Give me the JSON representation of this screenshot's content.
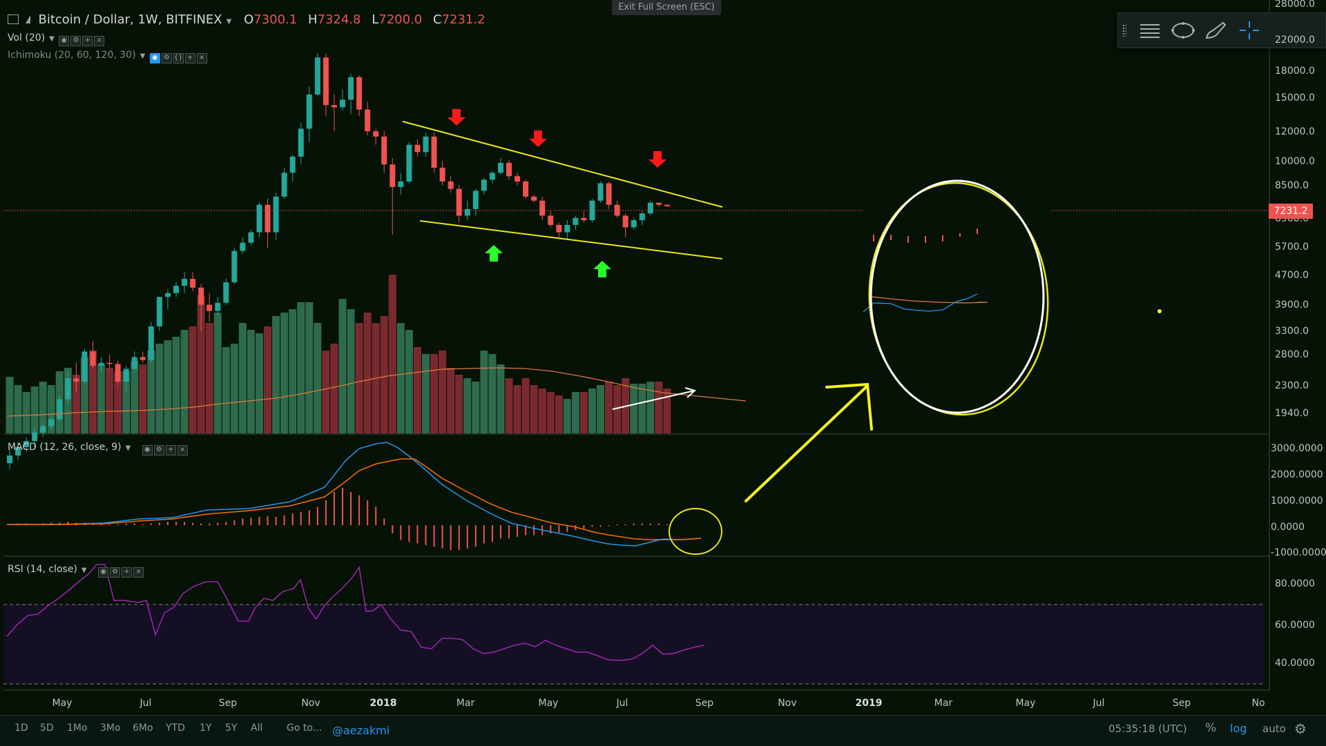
{
  "header": {
    "symbol": "Bitcoin / Dollar, 1W, BITFINEX",
    "ohlc": [
      {
        "label": "O",
        "value": "7300.1"
      },
      {
        "label": "H",
        "value": "7324.8"
      },
      {
        "label": "L",
        "value": "7200.0"
      },
      {
        "label": "C",
        "value": "7231.2"
      }
    ],
    "fullscreen_button": "Exit Full Screen (ESC)"
  },
  "indicators": {
    "vol_label": "Vol (20)",
    "ichimoku_label": "Ichimoku (20, 60, 120, 30)",
    "macd_label": "MACD (12, 26, close, 9)",
    "rsi_label": "RSI (14, close)"
  },
  "price_axis": {
    "labels": [
      "28000.0",
      "22000.0",
      "18000.0",
      "15000.0",
      "12000.0",
      "10000.0",
      "8500.0",
      "6900.0",
      "5700.0",
      "4700.0",
      "3900.0",
      "3300.0",
      "2800.0",
      "2300.0",
      "1940.0"
    ],
    "last_price": "7231.2"
  },
  "macd_axis": {
    "labels": [
      "3000.0000",
      "2000.0000",
      "1000.0000",
      "0.0000",
      "-1000.0000"
    ]
  },
  "rsi_axis": {
    "labels": [
      "80.0000",
      "60.0000",
      "40.0000"
    ]
  },
  "time_axis": {
    "labels": [
      {
        "text": "May",
        "year": false
      },
      {
        "text": "Jul",
        "year": false
      },
      {
        "text": "Sep",
        "year": false
      },
      {
        "text": "Nov",
        "year": false
      },
      {
        "text": "2018",
        "year": true
      },
      {
        "text": "Mar",
        "year": false
      },
      {
        "text": "May",
        "year": false
      },
      {
        "text": "Jul",
        "year": false
      },
      {
        "text": "Sep",
        "year": false
      },
      {
        "text": "Nov",
        "year": false
      },
      {
        "text": "2019",
        "year": true
      },
      {
        "text": "Mar",
        "year": false
      },
      {
        "text": "May",
        "year": false
      },
      {
        "text": "Jul",
        "year": false
      },
      {
        "text": "Sep",
        "year": false
      },
      {
        "text": "No",
        "year": false
      }
    ]
  },
  "bottom_bar": {
    "ranges": [
      "1D",
      "5D",
      "1Mo",
      "3Mo",
      "6Mo",
      "YTD",
      "1Y",
      "5Y",
      "All"
    ],
    "goto": "Go to...",
    "handle": "@aezakmi",
    "clock": "05:35:18 (UTC)",
    "percent": "%",
    "log": "log",
    "auto": "auto"
  },
  "colors": {
    "background": "#071206",
    "up": "#26a69a",
    "down": "#ef5350",
    "annotation_yellow": "#f5f51b",
    "arrow_red": "#ff1a1a",
    "arrow_green": "#2aff2a",
    "rsi": "#9c27b0",
    "macd": "#2196f3",
    "signal": "#ff6d00"
  },
  "chart_data": {
    "type": "candlestick",
    "title": "Bitcoin / Dollar, 1W, BITFINEX",
    "y_scale": "log",
    "ylim": [
      1600,
      30000
    ],
    "candles": [
      {
        "o": 1350,
        "h": 1480,
        "l": 1300,
        "c": 1420
      },
      {
        "o": 1420,
        "h": 1550,
        "l": 1380,
        "c": 1500
      },
      {
        "o": 1500,
        "h": 1600,
        "l": 1450,
        "c": 1560
      },
      {
        "o": 1560,
        "h": 1700,
        "l": 1500,
        "c": 1650
      },
      {
        "o": 1650,
        "h": 1760,
        "l": 1600,
        "c": 1720
      },
      {
        "o": 1720,
        "h": 1850,
        "l": 1680,
        "c": 1800
      },
      {
        "o": 1800,
        "h": 2100,
        "l": 1760,
        "c": 2050
      },
      {
        "o": 2050,
        "h": 2450,
        "l": 2000,
        "c": 2350
      },
      {
        "o": 2350,
        "h": 2600,
        "l": 2150,
        "c": 2300
      },
      {
        "o": 2300,
        "h": 2850,
        "l": 2250,
        "c": 2800
      },
      {
        "o": 2800,
        "h": 3000,
        "l": 2500,
        "c": 2550
      },
      {
        "o": 2550,
        "h": 2700,
        "l": 2450,
        "c": 2600
      },
      {
        "o": 2600,
        "h": 2750,
        "l": 2500,
        "c": 2580
      },
      {
        "o": 2580,
        "h": 2640,
        "l": 2250,
        "c": 2300
      },
      {
        "o": 2300,
        "h": 2550,
        "l": 2150,
        "c": 2500
      },
      {
        "o": 2500,
        "h": 2800,
        "l": 2450,
        "c": 2700
      },
      {
        "o": 2700,
        "h": 2800,
        "l": 2600,
        "c": 2650
      },
      {
        "o": 2650,
        "h": 3400,
        "l": 2600,
        "c": 3300
      },
      {
        "o": 3300,
        "h": 4000,
        "l": 3200,
        "c": 4000
      },
      {
        "o": 4000,
        "h": 4200,
        "l": 3700,
        "c": 4100
      },
      {
        "o": 4100,
        "h": 4400,
        "l": 4000,
        "c": 4300
      },
      {
        "o": 4300,
        "h": 4700,
        "l": 4100,
        "c": 4500
      },
      {
        "o": 4500,
        "h": 4700,
        "l": 4150,
        "c": 4250
      },
      {
        "o": 4250,
        "h": 4350,
        "l": 3200,
        "c": 3800
      },
      {
        "o": 3800,
        "h": 4100,
        "l": 3400,
        "c": 3650
      },
      {
        "o": 3650,
        "h": 4000,
        "l": 3550,
        "c": 3850
      },
      {
        "o": 3850,
        "h": 4500,
        "l": 3800,
        "c": 4400
      },
      {
        "o": 4400,
        "h": 5500,
        "l": 4350,
        "c": 5400
      },
      {
        "o": 5400,
        "h": 5900,
        "l": 5300,
        "c": 5700
      },
      {
        "o": 5700,
        "h": 6200,
        "l": 5600,
        "c": 6100
      },
      {
        "o": 6100,
        "h": 7400,
        "l": 5900,
        "c": 7300
      },
      {
        "o": 7300,
        "h": 7600,
        "l": 5500,
        "c": 6100
      },
      {
        "o": 6100,
        "h": 7900,
        "l": 5800,
        "c": 7700
      },
      {
        "o": 7700,
        "h": 9300,
        "l": 7600,
        "c": 9000
      },
      {
        "o": 9000,
        "h": 10100,
        "l": 8500,
        "c": 10000
      },
      {
        "o": 10000,
        "h": 12500,
        "l": 9500,
        "c": 12000
      },
      {
        "o": 12000,
        "h": 15800,
        "l": 11000,
        "c": 15000
      },
      {
        "o": 15000,
        "h": 19600,
        "l": 14800,
        "c": 19100
      },
      {
        "o": 19100,
        "h": 19600,
        "l": 13000,
        "c": 14000
      },
      {
        "o": 14000,
        "h": 15000,
        "l": 11800,
        "c": 13800
      },
      {
        "o": 13800,
        "h": 15500,
        "l": 13500,
        "c": 14500
      },
      {
        "o": 14500,
        "h": 17200,
        "l": 13200,
        "c": 16800
      },
      {
        "o": 16800,
        "h": 17000,
        "l": 13000,
        "c": 13600
      },
      {
        "o": 13600,
        "h": 14300,
        "l": 11500,
        "c": 11800
      },
      {
        "o": 11800,
        "h": 12000,
        "l": 10800,
        "c": 11400
      },
      {
        "o": 11400,
        "h": 11800,
        "l": 9000,
        "c": 9500
      },
      {
        "o": 9500,
        "h": 9900,
        "l": 6000,
        "c": 8200
      },
      {
        "o": 8200,
        "h": 9000,
        "l": 7800,
        "c": 8500
      },
      {
        "o": 8500,
        "h": 11000,
        "l": 8400,
        "c": 10800
      },
      {
        "o": 10800,
        "h": 11200,
        "l": 10000,
        "c": 10300
      },
      {
        "o": 10300,
        "h": 11700,
        "l": 10000,
        "c": 11400
      },
      {
        "o": 11400,
        "h": 11700,
        "l": 9000,
        "c": 9300
      },
      {
        "o": 9300,
        "h": 9700,
        "l": 8300,
        "c": 8500
      },
      {
        "o": 8500,
        "h": 8800,
        "l": 7900,
        "c": 8100
      },
      {
        "o": 8100,
        "h": 8300,
        "l": 6500,
        "c": 6800
      },
      {
        "o": 6800,
        "h": 7500,
        "l": 6600,
        "c": 7100
      },
      {
        "o": 7100,
        "h": 8100,
        "l": 6800,
        "c": 8000
      },
      {
        "o": 8000,
        "h": 8700,
        "l": 7800,
        "c": 8600
      },
      {
        "o": 8600,
        "h": 9100,
        "l": 8400,
        "c": 9000
      },
      {
        "o": 9000,
        "h": 9900,
        "l": 8900,
        "c": 9600
      },
      {
        "o": 9600,
        "h": 9800,
        "l": 8600,
        "c": 8800
      },
      {
        "o": 8800,
        "h": 9000,
        "l": 8300,
        "c": 8500
      },
      {
        "o": 8500,
        "h": 8600,
        "l": 7600,
        "c": 7700
      },
      {
        "o": 7700,
        "h": 7800,
        "l": 7400,
        "c": 7500
      },
      {
        "o": 7500,
        "h": 7700,
        "l": 6600,
        "c": 6800
      },
      {
        "o": 6800,
        "h": 7000,
        "l": 6300,
        "c": 6400
      },
      {
        "o": 6400,
        "h": 6500,
        "l": 5900,
        "c": 6100
      },
      {
        "o": 6100,
        "h": 6600,
        "l": 5800,
        "c": 6400
      },
      {
        "o": 6400,
        "h": 6800,
        "l": 6200,
        "c": 6700
      },
      {
        "o": 6700,
        "h": 7000,
        "l": 6500,
        "c": 6600
      },
      {
        "o": 6600,
        "h": 7600,
        "l": 6500,
        "c": 7500
      },
      {
        "o": 7500,
        "h": 8500,
        "l": 7400,
        "c": 8400
      },
      {
        "o": 8400,
        "h": 8500,
        "l": 7100,
        "c": 7300
      },
      {
        "o": 7300,
        "h": 7500,
        "l": 6700,
        "c": 6800
      },
      {
        "o": 6800,
        "h": 6900,
        "l": 5900,
        "c": 6300
      },
      {
        "o": 6300,
        "h": 6700,
        "l": 6200,
        "c": 6600
      },
      {
        "o": 6600,
        "h": 7000,
        "l": 6400,
        "c": 6900
      },
      {
        "o": 6900,
        "h": 7500,
        "l": 6800,
        "c": 7400
      },
      {
        "o": 7400,
        "h": 7400,
        "l": 7200,
        "c": 7300
      },
      {
        "o": 7300,
        "h": 7325,
        "l": 7200,
        "c": 7231
      }
    ],
    "macd_ylim": [
      -1000,
      3000
    ],
    "rsi_ylim": [
      30,
      95
    ],
    "rsi_bands": [
      70,
      30
    ]
  }
}
